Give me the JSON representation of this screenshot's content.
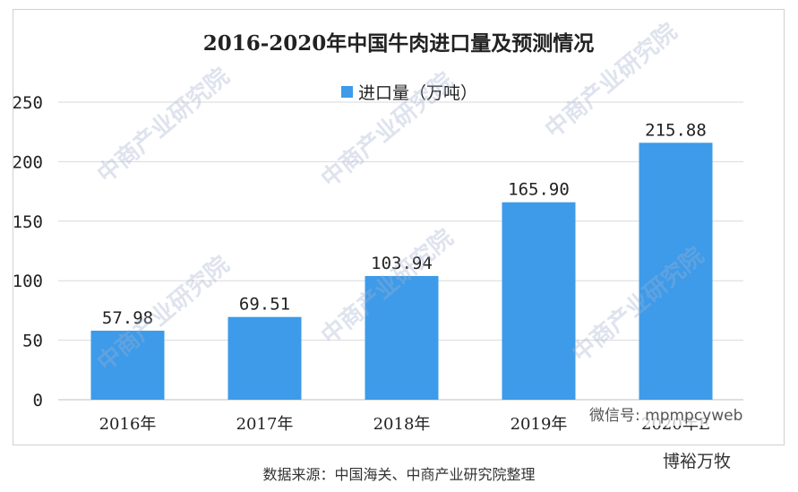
{
  "chart_data": {
    "type": "bar",
    "title": "2016-2020年中国牛肉进口量及预测情况",
    "categories": [
      "2016年",
      "2017年",
      "2018年",
      "2019年",
      "2020年E"
    ],
    "series": [
      {
        "name": "进口量（万吨）",
        "values": [
          57.98,
          69.51,
          103.94,
          165.9,
          215.88
        ]
      }
    ],
    "data_labels": [
      "57.98",
      "69.51",
      "103.94",
      "165.90",
      "215.88"
    ],
    "ylim": [
      0,
      250
    ],
    "yticks": [
      0,
      50,
      100,
      150,
      200,
      250
    ],
    "grid": true,
    "legend_position": "top-center",
    "bar_color": "#3d9be9"
  },
  "watermark": {
    "text": "中商产业研究院"
  },
  "overlay": {
    "wechat": "微信号: mpmpcyweb",
    "brand": "博裕万牧"
  },
  "source": "数据来源：中国海关、中商产业研究院整理"
}
